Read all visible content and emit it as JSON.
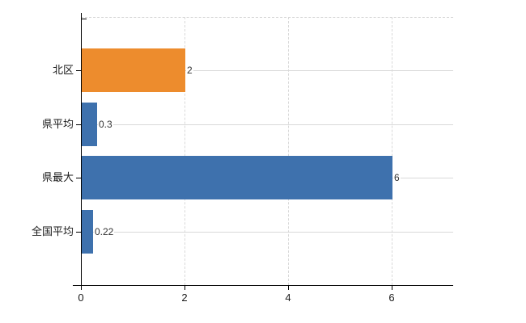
{
  "chart_data": {
    "type": "bar",
    "orientation": "horizontal",
    "title": "",
    "categories": [
      "北区",
      "県平均",
      "県最大",
      "全国平均"
    ],
    "values": [
      2,
      0.3,
      6,
      0.22
    ],
    "value_labels": [
      "2",
      "0.3",
      "6",
      "0.22"
    ],
    "bar_colors": [
      "#ED8C2D",
      "#3E71AD",
      "#3E71AD",
      "#3E71AD"
    ],
    "x_ticks": [
      0,
      2,
      4,
      6
    ],
    "x_tick_labels": [
      "0",
      "2",
      "4",
      "6"
    ],
    "xlim": [
      0,
      7.19
    ],
    "grid": true,
    "legend": false
  },
  "colors": {
    "bar_orange": "#ED8C2D",
    "bar_blue": "#3E71AD",
    "gridline": "#D9D9D9",
    "axis": "#000000",
    "text": "#1A1A1A",
    "background": "#FFFFFF"
  }
}
